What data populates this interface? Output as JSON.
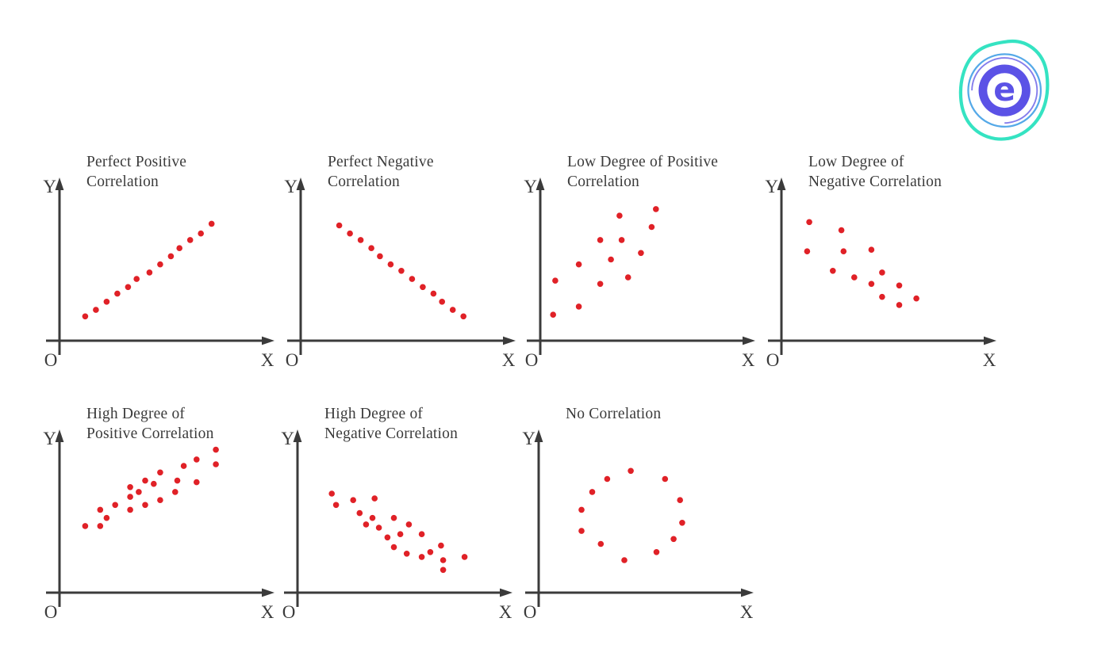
{
  "page": {
    "background": "#ffffff"
  },
  "colors": {
    "dot": "#e02127",
    "axis": "#3b3b3b",
    "text": "#3b3b3b"
  },
  "logo": {
    "name": "embibe-logo",
    "letter": "e",
    "teal": "#35e3c2",
    "blue": "#55a9e8",
    "indigo": "#5b52e6"
  },
  "chart_data": [
    {
      "type": "scatter",
      "title": "Perfect Positive Correlation",
      "title_lines": [
        "Perfect Positive",
        "Correlation"
      ],
      "ylabel": "Y",
      "xlabel": "X",
      "origin_label": "O",
      "xlim": [
        0,
        100
      ],
      "ylim": [
        0,
        100
      ],
      "grid": false,
      "ticks": false,
      "points": [
        [
          12,
          15
        ],
        [
          17,
          19
        ],
        [
          22,
          24
        ],
        [
          27,
          29
        ],
        [
          32,
          33
        ],
        [
          36,
          38
        ],
        [
          42,
          42
        ],
        [
          47,
          47
        ],
        [
          52,
          52
        ],
        [
          56,
          57
        ],
        [
          61,
          62
        ],
        [
          66,
          66
        ],
        [
          71,
          72
        ]
      ]
    },
    {
      "type": "scatter",
      "title": "Perfect Negative Correlation",
      "title_lines": [
        "Perfect Negative",
        "Correlation"
      ],
      "ylabel": "Y",
      "xlabel": "X",
      "origin_label": "O",
      "xlim": [
        0,
        100
      ],
      "ylim": [
        0,
        100
      ],
      "grid": false,
      "ticks": false,
      "points": [
        [
          18,
          71
        ],
        [
          23,
          66
        ],
        [
          28,
          62
        ],
        [
          33,
          57
        ],
        [
          37,
          52
        ],
        [
          42,
          47
        ],
        [
          47,
          43
        ],
        [
          52,
          38
        ],
        [
          57,
          33
        ],
        [
          62,
          29
        ],
        [
          66,
          24
        ],
        [
          71,
          19
        ],
        [
          76,
          15
        ]
      ]
    },
    {
      "type": "scatter",
      "title": "Low Degree of Positive Correlation",
      "title_lines": [
        "Low Degree of Positive",
        "Correlation"
      ],
      "ylabel": "Y",
      "xlabel": "X",
      "origin_label": "O",
      "xlim": [
        0,
        100
      ],
      "ylim": [
        0,
        100
      ],
      "grid": false,
      "ticks": false,
      "points": [
        [
          6,
          16
        ],
        [
          18,
          21
        ],
        [
          7,
          37
        ],
        [
          28,
          35
        ],
        [
          18,
          47
        ],
        [
          41,
          39
        ],
        [
          33,
          50
        ],
        [
          28,
          62
        ],
        [
          38,
          62
        ],
        [
          47,
          54
        ],
        [
          37,
          77
        ],
        [
          52,
          70
        ],
        [
          54,
          81
        ]
      ]
    },
    {
      "type": "scatter",
      "title": "Low Degree of Negative Correlation",
      "title_lines": [
        "Low Degree of",
        "Negative Correlation"
      ],
      "ylabel": "Y",
      "xlabel": "X",
      "origin_label": "O",
      "xlim": [
        0,
        100
      ],
      "ylim": [
        0,
        100
      ],
      "grid": false,
      "ticks": false,
      "points": [
        [
          13,
          73
        ],
        [
          28,
          68
        ],
        [
          12,
          55
        ],
        [
          29,
          55
        ],
        [
          42,
          56
        ],
        [
          24,
          43
        ],
        [
          34,
          39
        ],
        [
          42,
          35
        ],
        [
          47,
          42
        ],
        [
          55,
          34
        ],
        [
          47,
          27
        ],
        [
          55,
          22
        ],
        [
          63,
          26
        ]
      ]
    },
    {
      "type": "scatter",
      "title": "High Degree of Positive Correlation",
      "title_lines": [
        "High Degree of",
        "Positive Correlation"
      ],
      "ylabel": "Y",
      "xlabel": "X",
      "origin_label": "O",
      "xlim": [
        0,
        100
      ],
      "ylim": [
        0,
        100
      ],
      "grid": false,
      "ticks": false,
      "points": [
        [
          12,
          41
        ],
        [
          19,
          51
        ],
        [
          19,
          41
        ],
        [
          22,
          46
        ],
        [
          26,
          54
        ],
        [
          33,
          65
        ],
        [
          33,
          51
        ],
        [
          33,
          59
        ],
        [
          37,
          62
        ],
        [
          40,
          69
        ],
        [
          40,
          54
        ],
        [
          44,
          67
        ],
        [
          47,
          57
        ],
        [
          47,
          74
        ],
        [
          54,
          62
        ],
        [
          55,
          69
        ],
        [
          58,
          78
        ],
        [
          64,
          82
        ],
        [
          64,
          68
        ],
        [
          73,
          79
        ],
        [
          73,
          88
        ]
      ]
    },
    {
      "type": "scatter",
      "title": "High Degree of Negative Correlation",
      "title_lines": [
        "High Degree of",
        "Negative Correlation"
      ],
      "ylabel": "Y",
      "xlabel": "X",
      "origin_label": "O",
      "xlim": [
        0,
        100
      ],
      "ylim": [
        0,
        100
      ],
      "grid": false,
      "ticks": false,
      "points": [
        [
          16,
          61
        ],
        [
          18,
          54
        ],
        [
          26,
          57
        ],
        [
          36,
          58
        ],
        [
          29,
          49
        ],
        [
          35,
          46
        ],
        [
          32,
          42
        ],
        [
          38,
          40
        ],
        [
          42,
          34
        ],
        [
          45,
          46
        ],
        [
          48,
          36
        ],
        [
          52,
          42
        ],
        [
          45,
          28
        ],
        [
          51,
          24
        ],
        [
          58,
          36
        ],
        [
          58,
          22
        ],
        [
          62,
          25
        ],
        [
          67,
          29
        ],
        [
          68,
          20
        ],
        [
          68,
          14
        ],
        [
          78,
          22
        ]
      ]
    },
    {
      "type": "scatter",
      "title": "No Correlation",
      "title_lines": [
        "No Correlation"
      ],
      "ylabel": "Y",
      "xlabel": "X",
      "origin_label": "O",
      "xlim": [
        0,
        100
      ],
      "ylim": [
        0,
        100
      ],
      "grid": false,
      "ticks": false,
      "points": [
        [
          43,
          75
        ],
        [
          32,
          70
        ],
        [
          59,
          70
        ],
        [
          25,
          62
        ],
        [
          66,
          57
        ],
        [
          20,
          51
        ],
        [
          67,
          43
        ],
        [
          20,
          38
        ],
        [
          63,
          33
        ],
        [
          29,
          30
        ],
        [
          55,
          25
        ],
        [
          40,
          20
        ]
      ]
    }
  ]
}
